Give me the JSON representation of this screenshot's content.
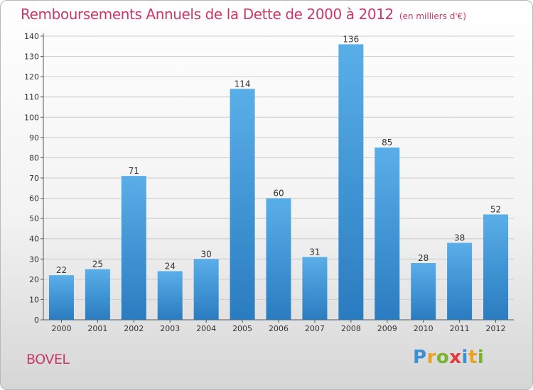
{
  "title": "Remboursements Annuels de la Dette de 2000 à 2012",
  "unit": "(en milliers d'€)",
  "commune": "BOVEL",
  "logo": {
    "letters": [
      "P",
      "r",
      "o",
      "x",
      "i",
      "t",
      "i"
    ]
  },
  "colors": {
    "title": "#c8386a",
    "bar_light": "#5aaee8",
    "bar_dark": "#2a7cc0",
    "grid": "#cccccc"
  },
  "chart_data": {
    "type": "bar",
    "title": "Remboursements Annuels de la Dette de 2000 à 2012",
    "xlabel": "",
    "ylabel": "",
    "categories": [
      "2000",
      "2001",
      "2002",
      "2003",
      "2004",
      "2005",
      "2006",
      "2007",
      "2008",
      "2009",
      "2010",
      "2011",
      "2012"
    ],
    "values": [
      22,
      25,
      71,
      24,
      30,
      114,
      60,
      31,
      136,
      85,
      28,
      38,
      52
    ],
    "value_labels": [
      "22",
      "25",
      "71",
      "24",
      "30",
      "114",
      "60",
      "31",
      "136",
      "85",
      "28",
      "38",
      "52"
    ],
    "ylim": [
      0,
      140
    ],
    "yticks": [
      0,
      10,
      20,
      30,
      40,
      50,
      60,
      70,
      80,
      90,
      100,
      110,
      120,
      130,
      140
    ],
    "ytick_labels": [
      "0",
      "10",
      "20",
      "30",
      "40",
      "50",
      "60",
      "70",
      "80",
      "90",
      "100",
      "110",
      "120",
      "130",
      "140"
    ],
    "grid": true
  }
}
